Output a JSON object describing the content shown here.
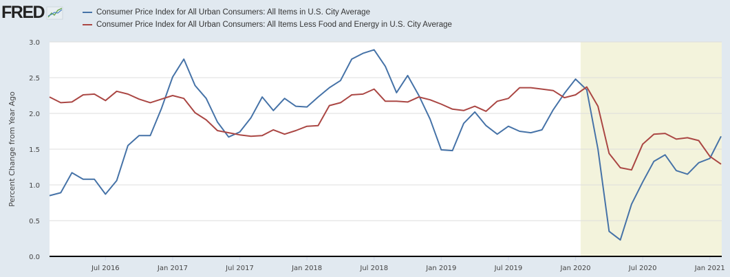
{
  "header": {
    "logo_text": "FRED",
    "logo_icon": "line-chart-icon"
  },
  "chart_data": {
    "type": "line",
    "title": "",
    "xlabel": "",
    "ylabel": "Percent Change from Year Ago",
    "ylim": [
      0,
      3.0
    ],
    "y_ticks": [
      "0.0",
      "0.5",
      "1.0",
      "1.5",
      "2.0",
      "2.5",
      "3.0"
    ],
    "x_start": "2016-02",
    "x_end": "2021-02",
    "x_ticks": [
      {
        "label": "Jul 2016",
        "month_index": 5
      },
      {
        "label": "Jan 2017",
        "month_index": 11
      },
      {
        "label": "Jul 2017",
        "month_index": 17
      },
      {
        "label": "Jan 2018",
        "month_index": 23
      },
      {
        "label": "Jul 2018",
        "month_index": 29
      },
      {
        "label": "Jan 2019",
        "month_index": 35
      },
      {
        "label": "Jul 2019",
        "month_index": 41
      },
      {
        "label": "Jan 2020",
        "month_index": 47
      },
      {
        "label": "Jul 2020",
        "month_index": 53
      },
      {
        "label": "Jan 2021",
        "month_index": 59
      }
    ],
    "grid": true,
    "legend_position": "top",
    "recession": {
      "start_month_index": 48,
      "end_month_index": 60,
      "color": "#f3f3dc"
    },
    "series": [
      {
        "name": "Consumer Price Index for All Urban Consumers: All Items in U.S. City Average",
        "color": "#4572a7",
        "values": [
          0.85,
          0.89,
          1.17,
          1.08,
          1.08,
          0.87,
          1.06,
          1.55,
          1.69,
          1.69,
          2.07,
          2.51,
          2.76,
          2.39,
          2.21,
          1.88,
          1.67,
          1.74,
          1.94,
          2.23,
          2.04,
          2.21,
          2.1,
          2.09,
          2.23,
          2.36,
          2.46,
          2.76,
          2.84,
          2.89,
          2.66,
          2.29,
          2.53,
          2.25,
          1.92,
          1.49,
          1.48,
          1.86,
          2.02,
          1.83,
          1.71,
          1.82,
          1.75,
          1.73,
          1.77,
          2.05,
          2.28,
          2.48,
          2.33,
          1.5,
          0.35,
          0.23,
          0.73,
          1.04,
          1.33,
          1.42,
          1.2,
          1.15,
          1.31,
          1.37,
          1.68
        ]
      },
      {
        "name": "Consumer Price Index for All Urban Consumers: All Items Less Food and Energy in U.S. City Average",
        "color": "#aa4643",
        "values": [
          2.23,
          2.15,
          2.16,
          2.26,
          2.27,
          2.18,
          2.31,
          2.27,
          2.2,
          2.15,
          2.2,
          2.25,
          2.21,
          2.01,
          1.91,
          1.76,
          1.73,
          1.7,
          1.68,
          1.69,
          1.77,
          1.71,
          1.76,
          1.82,
          1.83,
          2.11,
          2.15,
          2.26,
          2.27,
          2.34,
          2.17,
          2.17,
          2.16,
          2.23,
          2.19,
          2.13,
          2.06,
          2.04,
          2.1,
          2.03,
          2.17,
          2.21,
          2.36,
          2.36,
          2.34,
          2.32,
          2.22,
          2.26,
          2.37,
          2.1,
          1.44,
          1.24,
          1.21,
          1.57,
          1.71,
          1.72,
          1.64,
          1.66,
          1.62,
          1.4,
          1.29
        ]
      }
    ]
  }
}
